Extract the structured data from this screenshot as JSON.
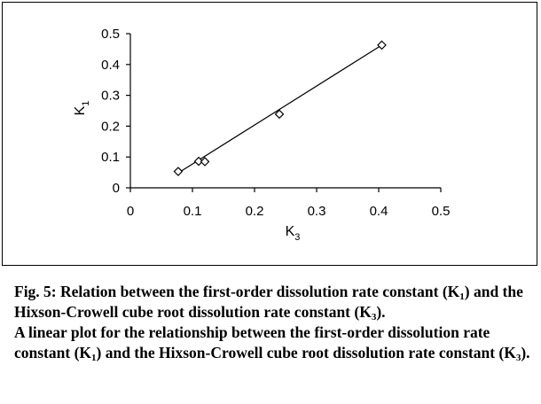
{
  "chart_data": {
    "type": "scatter",
    "points": [
      {
        "x": 0.077,
        "y": 0.053
      },
      {
        "x": 0.11,
        "y": 0.086
      },
      {
        "x": 0.12,
        "y": 0.085
      },
      {
        "x": 0.24,
        "y": 0.239
      },
      {
        "x": 0.405,
        "y": 0.463
      }
    ],
    "trendline": {
      "x1": 0.077,
      "y1": 0.048,
      "x2": 0.405,
      "y2": 0.463
    },
    "xlim": [
      0,
      0.5
    ],
    "ylim": [
      0,
      0.5
    ],
    "xticks": [
      "0",
      "0.1",
      "0.2",
      "0.3",
      "0.4",
      "0.5"
    ],
    "yticks": [
      "0",
      "0.1",
      "0.2",
      "0.3",
      "0.4",
      "0.5"
    ],
    "xlabel": {
      "main": "K",
      "sub": "3"
    },
    "ylabel": {
      "main": "K",
      "sub": "1"
    },
    "marker": "diamond-open",
    "grid": false
  },
  "caption": {
    "line1_a": "Fig. 5: Relation between the first-order dissolution rate constant (K",
    "line1_sub1": "1",
    "line1_b": ") and the Hixson-Crowell cube root dissolution rate constant (K",
    "line1_sub2": "3",
    "line1_c": ").",
    "line2_a": "A linear plot for the relationship between the first-order dissolution rate constant (K",
    "line2_sub1": "1",
    "line2_b": ") and the Hixson-Crowell cube root dissolution rate constant (K",
    "line2_sub2": "3",
    "line2_c": ")."
  }
}
